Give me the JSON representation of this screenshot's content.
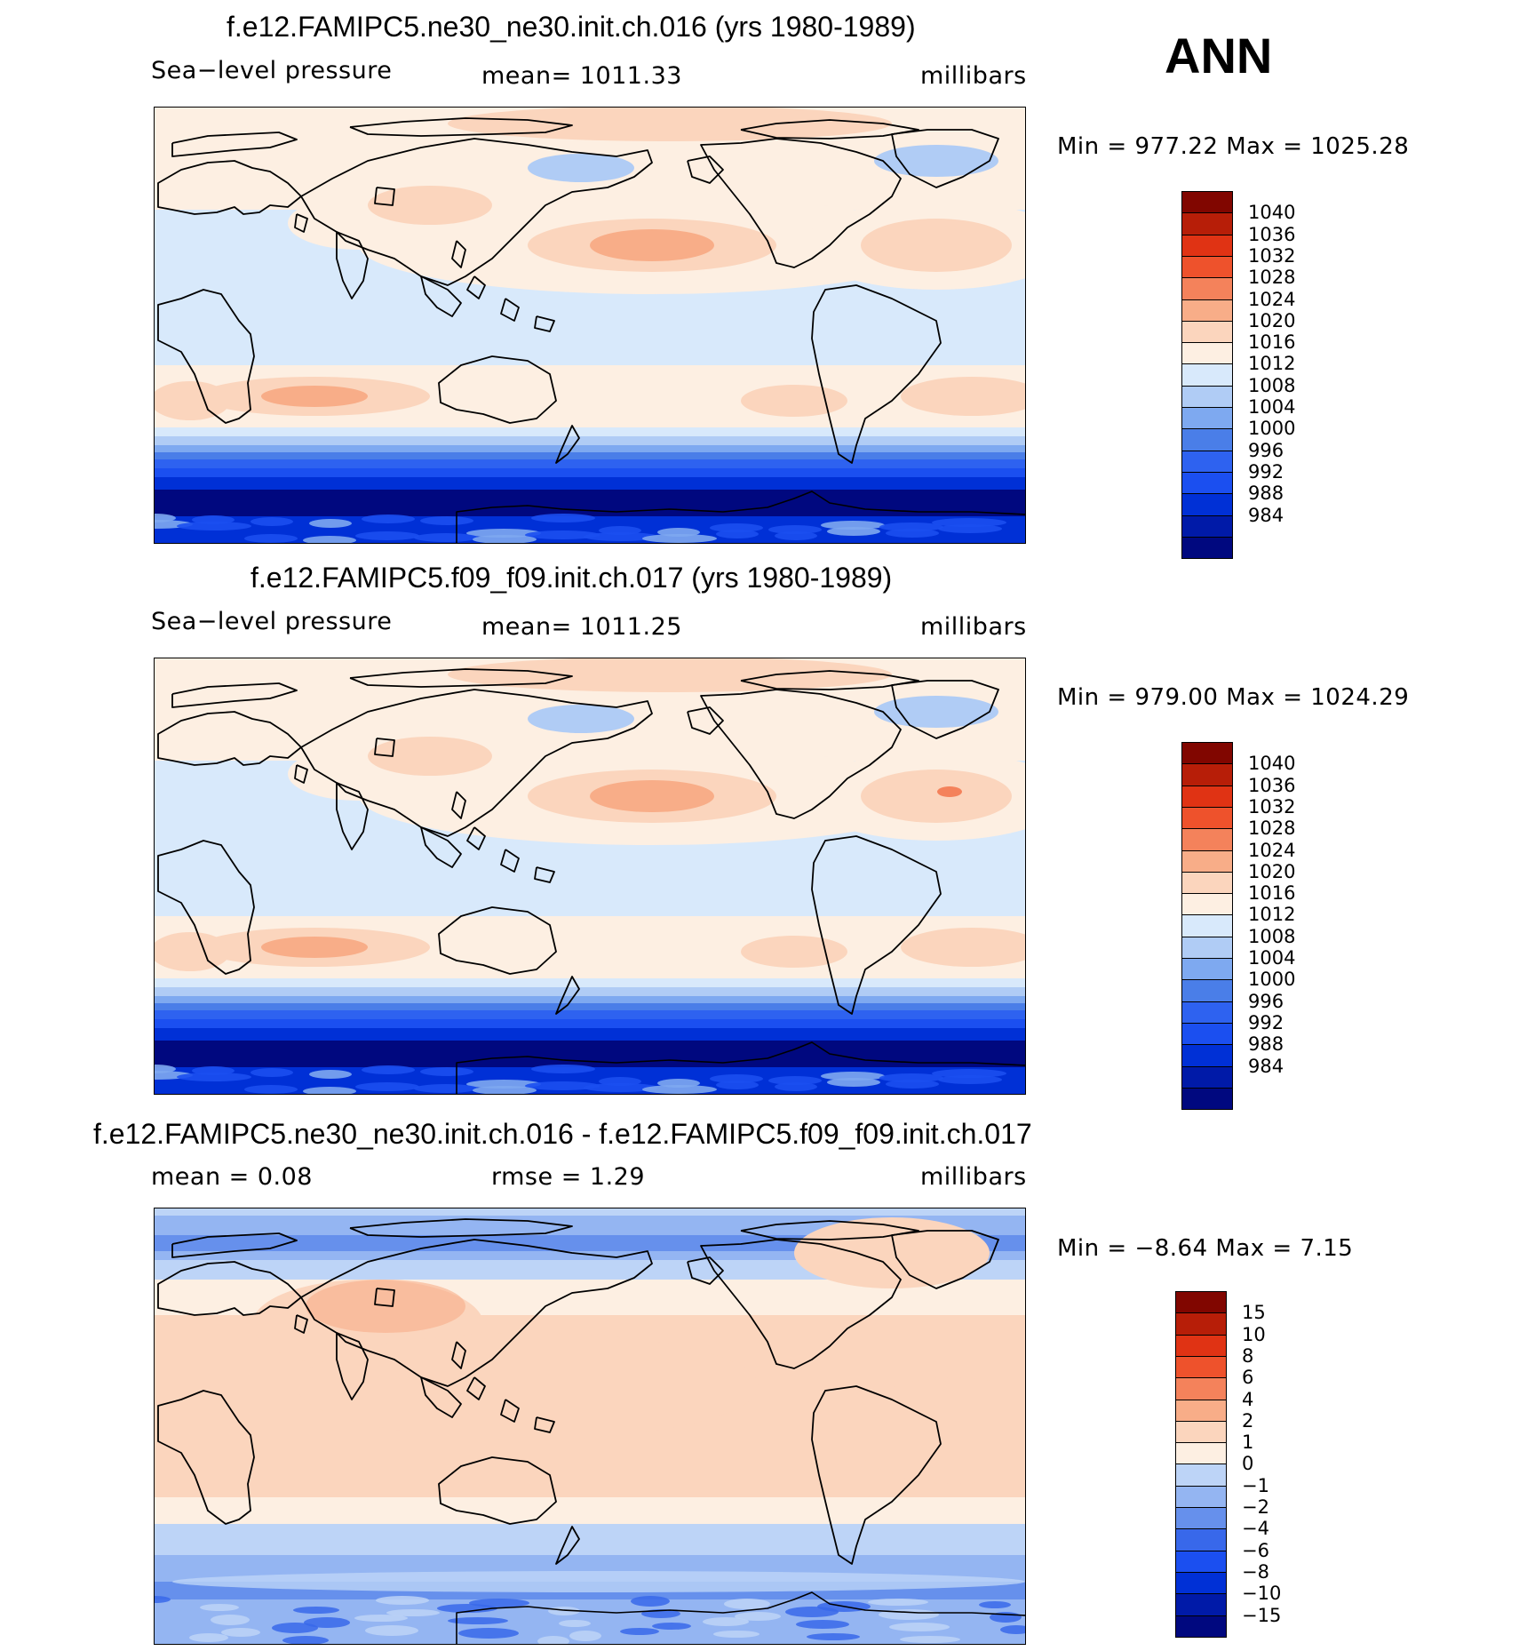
{
  "season": "ANN",
  "palettes": {
    "abs": [
      "#00087f",
      "#001aa8",
      "#0030d6",
      "#1b4ff0",
      "#2e62f0",
      "#4a7ee8",
      "#7ea9f0",
      "#b0ccf5",
      "#d8e9fb",
      "#fdefe2",
      "#fbd5bd",
      "#f8ad88",
      "#f4825b",
      "#ee522c",
      "#e03314",
      "#b71e08",
      "#810600"
    ],
    "diff": [
      "#00087f",
      "#001aa8",
      "#0030d6",
      "#1b4ff0",
      "#3868ea",
      "#6690ec",
      "#94b5f2",
      "#bdd4f7",
      "#fdefe2",
      "#fbd5bd",
      "#f8ad88",
      "#f4825b",
      "#ee522c",
      "#e03314",
      "#b71e08",
      "#810600"
    ]
  },
  "panels": [
    {
      "title": "f.e12.FAMIPC5.ne30_ne30.init.ch.016 (yrs 1980-1989)",
      "sub_left": "Sea−level  pressure",
      "sub_mid": "mean=  1011.33",
      "sub_right": "millibars",
      "minmax": "Min  =  977.22  Max  =  1025.28",
      "levels": [
        "1040",
        "1036",
        "1032",
        "1028",
        "1024",
        "1020",
        "1016",
        "1012",
        "1008",
        "1004",
        "1000",
        "996",
        "992",
        "988",
        "984"
      ]
    },
    {
      "title": "f.e12.FAMIPC5.f09_f09.init.ch.017 (yrs 1980-1989)",
      "sub_left": "Sea−level  pressure",
      "sub_mid": "mean=  1011.25",
      "sub_right": "millibars",
      "minmax": "Min  =  979.00  Max  =  1024.29",
      "levels": [
        "1040",
        "1036",
        "1032",
        "1028",
        "1024",
        "1020",
        "1016",
        "1012",
        "1008",
        "1004",
        "1000",
        "996",
        "992",
        "988",
        "984"
      ]
    },
    {
      "title": "f.e12.FAMIPC5.ne30_ne30.init.ch.016 - f.e12.FAMIPC5.f09_f09.init.ch.017",
      "sub_left": "mean  =     0.08",
      "sub_mid": "rmse  =     1.29",
      "sub_right": "millibars",
      "minmax": "Min  =    −8.64  Max  =      7.15",
      "levels": [
        "15",
        "10",
        "8",
        "6",
        "4",
        "2",
        "1",
        "0",
        "−1",
        "−2",
        "−4",
        "−6",
        "−8",
        "−10",
        "−15"
      ]
    }
  ]
}
